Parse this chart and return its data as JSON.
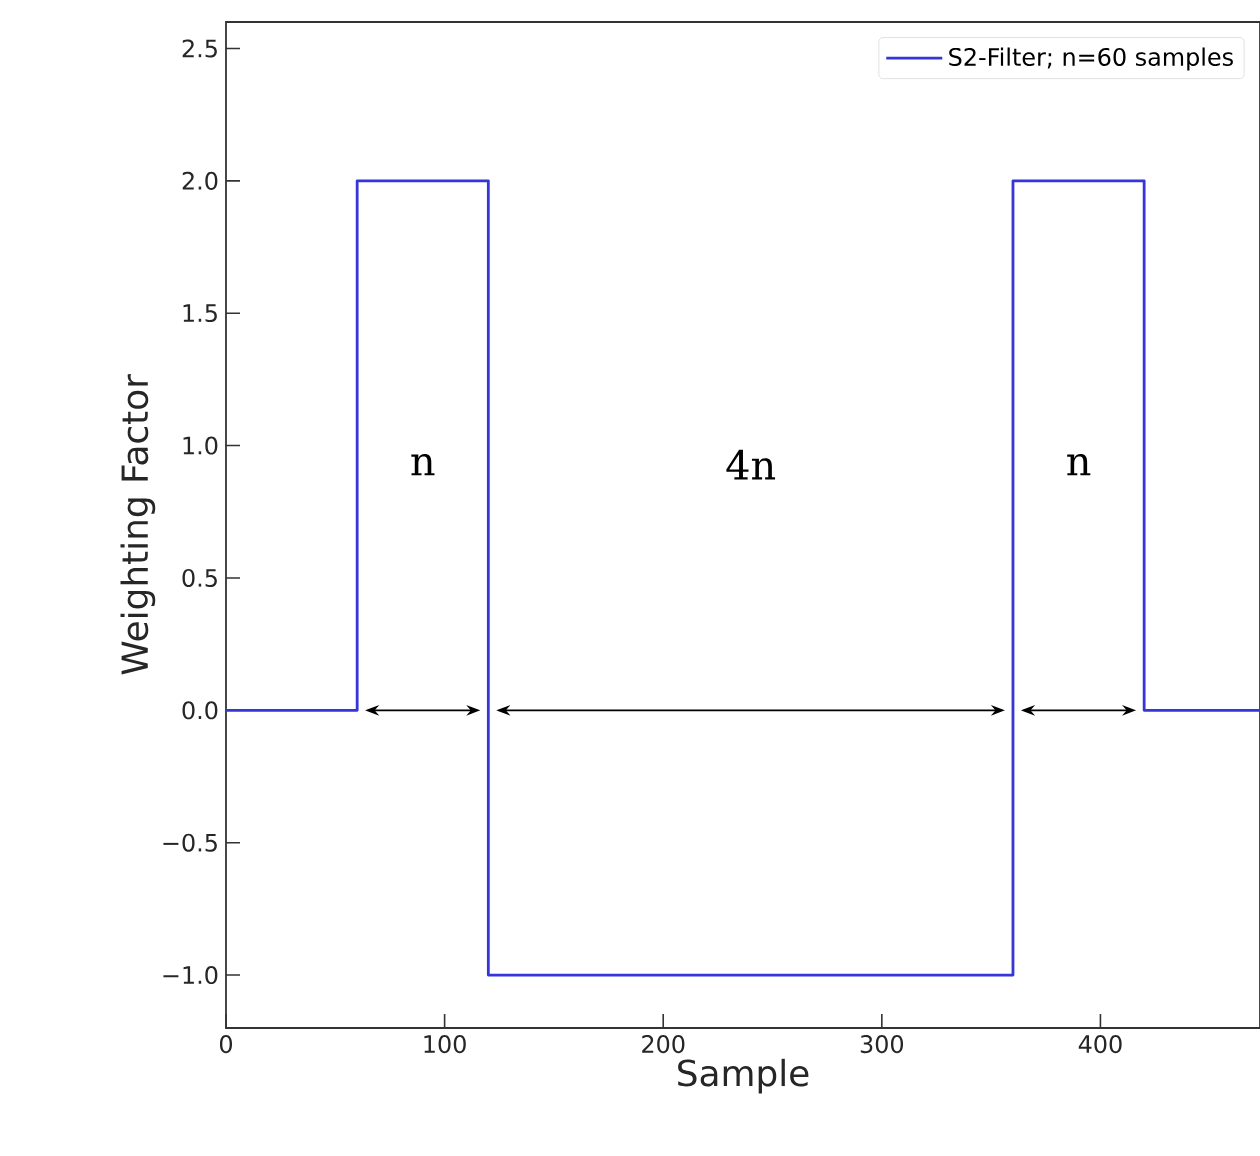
{
  "chart_data": {
    "type": "step",
    "xlabel": "Sample",
    "ylabel": "Weighting Factor",
    "xlim": [
      0,
      473
    ],
    "ylim": [
      -1.2,
      2.6
    ],
    "xticks": [
      0,
      100,
      200,
      300,
      400
    ],
    "yticks": [
      {
        "value": -1,
        "label": "−1.0"
      },
      {
        "value": -0.5,
        "label": "−0.5"
      },
      {
        "value": 0,
        "label": "0.0"
      },
      {
        "value": 0.5,
        "label": "0.5"
      },
      {
        "value": 1,
        "label": "1.0"
      },
      {
        "value": 1.5,
        "label": "1.5"
      },
      {
        "value": 2,
        "label": "2.0"
      },
      {
        "value": 2.5,
        "label": "2.5"
      }
    ],
    "legend": "top right",
    "series": [
      {
        "name": "S2-Filter; n=60 samples",
        "color": "#3535d8",
        "x": [
          0,
          60,
          120,
          360,
          420,
          473
        ],
        "values": [
          0,
          2,
          -1,
          2,
          0,
          0
        ]
      }
    ],
    "annotations": [
      "n",
      "4n",
      "n"
    ]
  }
}
